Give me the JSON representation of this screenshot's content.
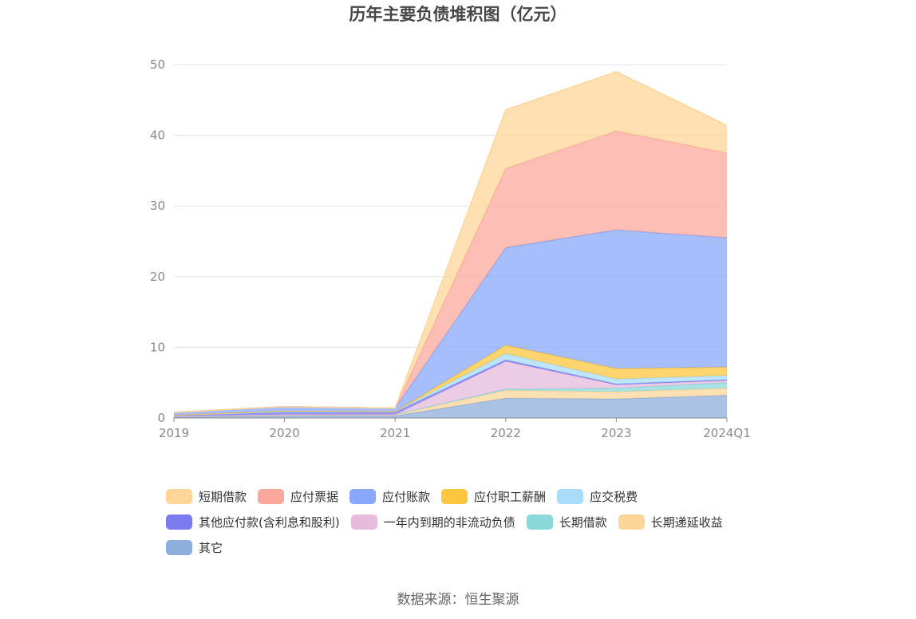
{
  "title": "历年主要负债堆积图（亿元）",
  "source": "数据来源：恒生聚源",
  "chart_data": {
    "type": "area",
    "stacked": true,
    "title": "历年主要负债堆积图（亿元）",
    "categories": [
      "2019",
      "2020",
      "2021",
      "2022",
      "2023",
      "2024Q1"
    ],
    "ylim": [
      0,
      50
    ],
    "yticks": [
      "0",
      "10",
      "20",
      "30",
      "40",
      "50"
    ],
    "grid": true,
    "legend_position": "bottom",
    "series": [
      {
        "name": "其它",
        "color": "#8eaedb",
        "values": [
          0.1,
          0.3,
          0.3,
          2.8,
          2.7,
          3.2
        ]
      },
      {
        "name": "长期递延收益",
        "color": "#fed599",
        "values": [
          0.1,
          0.2,
          0.2,
          1.1,
          1.0,
          1.0
        ]
      },
      {
        "name": "长期借款",
        "color": "#8bd8d8",
        "values": [
          0.0,
          0.0,
          0.0,
          0.2,
          0.5,
          0.8
        ]
      },
      {
        "name": "一年内到期的非流动负债",
        "color": "#e6bbdc",
        "values": [
          0.0,
          0.0,
          0.0,
          3.9,
          0.5,
          0.3
        ]
      },
      {
        "name": "其他应付款(含利息和股利)",
        "color": "#7c7cf0",
        "values": [
          0.2,
          0.3,
          0.3,
          0.2,
          0.1,
          0.1
        ]
      },
      {
        "name": "应交税费",
        "color": "#a7dcfb",
        "values": [
          0.0,
          0.1,
          0.1,
          0.9,
          0.7,
          0.6
        ]
      },
      {
        "name": "应付职工薪酬",
        "color": "#fdc63f",
        "values": [
          0.0,
          0.1,
          0.0,
          1.2,
          1.5,
          1.2
        ]
      },
      {
        "name": "应付账款",
        "color": "#8aa8fb",
        "values": [
          0.4,
          0.6,
          0.5,
          13.8,
          19.6,
          18.3
        ]
      },
      {
        "name": "应付票据",
        "color": "#fba89c",
        "values": [
          0.0,
          0.0,
          0.0,
          11.2,
          14.0,
          12.0
        ]
      },
      {
        "name": "短期借款",
        "color": "#fed599",
        "values": [
          0.0,
          0.0,
          0.0,
          8.3,
          8.4,
          3.9
        ]
      }
    ]
  },
  "legend": [
    {
      "label": "短期借款",
      "color": "#fed599"
    },
    {
      "label": "应付票据",
      "color": "#fba89c"
    },
    {
      "label": "应付账款",
      "color": "#8aa8fb"
    },
    {
      "label": "应付职工薪酬",
      "color": "#fdc63f"
    },
    {
      "label": "应交税费",
      "color": "#a7dcfb"
    },
    {
      "label": "其他应付款(含利息和股利)",
      "color": "#7c7cf0"
    },
    {
      "label": "一年内到期的非流动负债",
      "color": "#e6bbdc"
    },
    {
      "label": "长期借款",
      "color": "#8bd8d8"
    },
    {
      "label": "长期递延收益",
      "color": "#fed599"
    },
    {
      "label": "其它",
      "color": "#8eaedb"
    }
  ]
}
